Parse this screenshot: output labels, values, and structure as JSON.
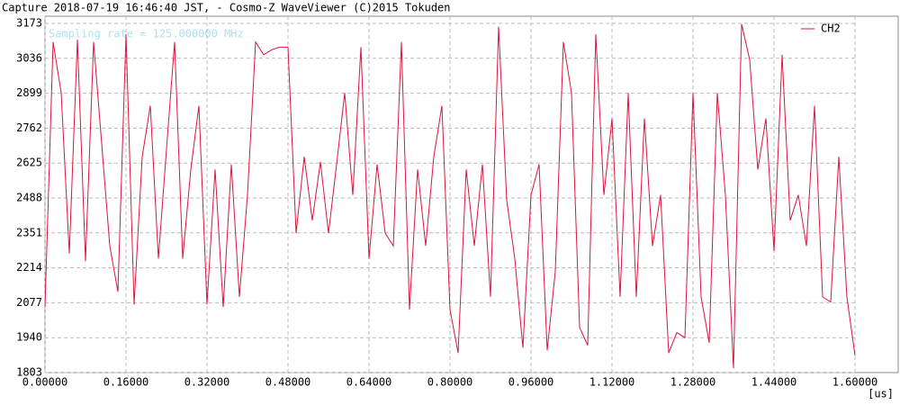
{
  "chart_data": {
    "type": "line",
    "title": "Capture 2018-07-19 16:46:40 JST, - Cosmo-Z WaveViewer (C)2015 Tokuden",
    "annotation": "Sampling rate = 125.000000 MHz",
    "x_label": "[us]",
    "grid": true,
    "legend": "upper right",
    "x": [
      0,
      0.016,
      0.032,
      0.048,
      0.064,
      0.08,
      0.096,
      0.112,
      0.128,
      0.144,
      0.16,
      0.176,
      0.192,
      0.208,
      0.224,
      0.24,
      0.256,
      0.272,
      0.288,
      0.304,
      0.32,
      0.336,
      0.352,
      0.368,
      0.384,
      0.4,
      0.416,
      0.432,
      0.448,
      0.464,
      0.48,
      0.496,
      0.512,
      0.528,
      0.544,
      0.56,
      0.576,
      0.592,
      0.608,
      0.624,
      0.64,
      0.656,
      0.672,
      0.688,
      0.704,
      0.72,
      0.736,
      0.752,
      0.768,
      0.784,
      0.8,
      0.816,
      0.832,
      0.848,
      0.864,
      0.88,
      0.896,
      0.912,
      0.928,
      0.944,
      0.96,
      0.976,
      0.992,
      1.008,
      1.024,
      1.04,
      1.056,
      1.072,
      1.088,
      1.104,
      1.12,
      1.136,
      1.152,
      1.168,
      1.184,
      1.2,
      1.216,
      1.232,
      1.248,
      1.264,
      1.28,
      1.296,
      1.312,
      1.328,
      1.344,
      1.36,
      1.376,
      1.392,
      1.408,
      1.424,
      1.44,
      1.456,
      1.472,
      1.488,
      1.504,
      1.52,
      1.536,
      1.552,
      1.568,
      1.584,
      1.6
    ],
    "series": [
      {
        "name": "CH2",
        "color": "#dc143c",
        "values": [
          2060,
          3100,
          2900,
          2270,
          3110,
          2240,
          3100,
          2700,
          2300,
          2120,
          3130,
          2070,
          2650,
          2850,
          2250,
          2680,
          3100,
          2250,
          2600,
          2850,
          2070,
          2600,
          2060,
          2620,
          2100,
          2500,
          3100,
          3050,
          3070,
          3080,
          3080,
          2350,
          2650,
          2400,
          2630,
          2350,
          2620,
          2900,
          2500,
          3080,
          2250,
          2620,
          2350,
          2300,
          3100,
          2050,
          2600,
          2300,
          2650,
          2850,
          2050,
          1880,
          2600,
          2300,
          2620,
          2100,
          3160,
          2480,
          2250,
          1900,
          2500,
          2620,
          1890,
          2200,
          3100,
          2900,
          1980,
          1910,
          3130,
          2500,
          2800,
          2100,
          2900,
          2100,
          2800,
          2300,
          2500,
          1880,
          1960,
          1940,
          2900,
          2100,
          1920,
          2900,
          2500,
          1820,
          3170,
          3030,
          2600,
          2800,
          2280,
          3050,
          2400,
          2500,
          2300,
          2850,
          2100,
          2080,
          2650,
          2100,
          1870
        ]
      }
    ],
    "xlim": [
      0,
      1.6
    ],
    "xticks": [
      {
        "value": 0,
        "label": "0.00000"
      },
      {
        "value": 0.16,
        "label": "0.16000"
      },
      {
        "value": 0.32,
        "label": "0.32000"
      },
      {
        "value": 0.48,
        "label": "0.48000"
      },
      {
        "value": 0.64,
        "label": "0.64000"
      },
      {
        "value": 0.8,
        "label": "0.80000"
      },
      {
        "value": 0.96,
        "label": "0.96000"
      },
      {
        "value": 1.12,
        "label": "1.12000"
      },
      {
        "value": 1.28,
        "label": "1.28000"
      },
      {
        "value": 1.44,
        "label": "1.44000"
      },
      {
        "value": 1.6,
        "label": "1.60000"
      }
    ],
    "ylim": [
      1803,
      3173
    ],
    "yticks": [
      1803,
      1940,
      2077,
      2214,
      2351,
      2488,
      2625,
      2762,
      2899,
      3036,
      3173
    ]
  }
}
